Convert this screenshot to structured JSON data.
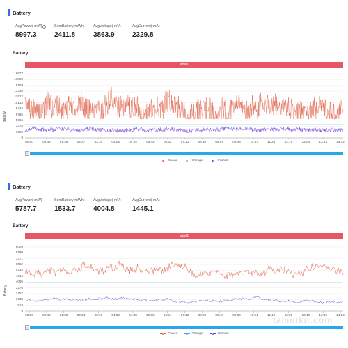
{
  "panels": [
    {
      "header_title": "Battery",
      "stats": [
        {
          "label": "AvgPower( mW)",
          "value": "8997.3",
          "has_help": true
        },
        {
          "label": "SumBattery(mWh)",
          "value": "2411.8",
          "has_help": false
        },
        {
          "label": "AvgVoltage( mV)",
          "value": "3863.9",
          "has_help": false
        },
        {
          "label": "AvgCurrent( mA)",
          "value": "2329.8",
          "has_help": false
        }
      ],
      "chart_title": "Battery",
      "band_label": "label1",
      "y_title": "Battery",
      "legend": {
        "power": "Power",
        "voltage": "Voltage",
        "current": "Current"
      }
    },
    {
      "header_title": "Battery",
      "stats": [
        {
          "label": "AvgPower( mW)",
          "value": "5787.7",
          "has_help": false
        },
        {
          "label": "SumBattery(mWh)",
          "value": "1533.7",
          "has_help": false
        },
        {
          "label": "AvgVoltage( mV)",
          "value": "4004.8",
          "has_help": false
        },
        {
          "label": "AvgCurrent( mA)",
          "value": "1445.1",
          "has_help": false
        }
      ],
      "chart_title": "Battery",
      "band_label": "label1",
      "y_title": "Battery",
      "legend": {
        "power": "Power",
        "voltage": "Voltage",
        "current": "Current"
      }
    }
  ],
  "watermark": "tamuikir.com",
  "colors": {
    "power": "#e0634a",
    "voltage": "#4aa8d8",
    "current": "#6f3fd8",
    "band": "#e85565",
    "zoom": "#2aa7e8",
    "accent": "#2f6fe4"
  },
  "chart_data": [
    {
      "type": "line",
      "ylabel": "Battery",
      "ylim": [
        0,
        18677
      ],
      "y_ticks": [
        "18677",
        "16888",
        "15109",
        "13330",
        "11622",
        "10133",
        "8444",
        "6755",
        "5066",
        "3378",
        "1689",
        "0"
      ],
      "x_ticks": [
        "00:00",
        "00:48",
        "01:36",
        "02:27",
        "03:16",
        "04:05",
        "04:54",
        "05:43",
        "06:32",
        "07:21",
        "08:10",
        "08:59",
        "09:48",
        "10:37",
        "11:26",
        "12:15",
        "13:04",
        "13:53",
        "14:42"
      ],
      "series": [
        {
          "name": "Power",
          "approx_level": 8997,
          "approx_min": 5500,
          "approx_max": 16200
        },
        {
          "name": "Voltage",
          "approx_level": 3864
        },
        {
          "name": "Current",
          "approx_level": 2330,
          "approx_min": 1500,
          "approx_max": 3300
        }
      ]
    },
    {
      "type": "line",
      "ylabel": "Battery",
      "ylim": [
        0,
        9009
      ],
      "y_ticks": [
        "9009",
        "8190",
        "7371",
        "6552",
        "5733",
        "4914",
        "4095",
        "3276",
        "2457",
        "1638",
        "819",
        "0"
      ],
      "x_ticks": [
        "00:00",
        "00:48",
        "01:36",
        "02:24",
        "03:12",
        "04:00",
        "04:48",
        "05:36",
        "06:24",
        "07:12",
        "08:00",
        "08:48",
        "09:36",
        "10:24",
        "11:12",
        "12:00",
        "12:48",
        "13:36",
        "14:24"
      ],
      "series": [
        {
          "name": "Power",
          "approx_level": 5788,
          "approx_min": 4300,
          "approx_max": 7400
        },
        {
          "name": "Voltage",
          "approx_level": 4005
        },
        {
          "name": "Current",
          "approx_level": 1445,
          "approx_min": 1000,
          "approx_max": 2000
        }
      ]
    }
  ]
}
